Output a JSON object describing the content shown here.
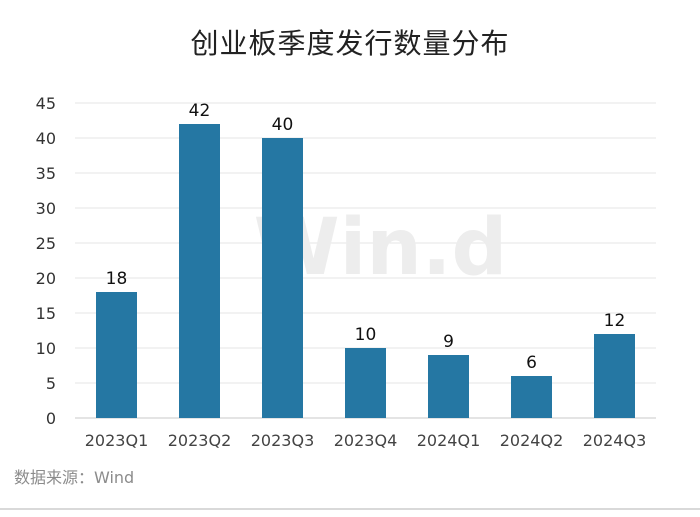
{
  "chart_data": {
    "type": "bar",
    "title": "创业板季度发行数量分布",
    "categories": [
      "2023Q1",
      "2023Q2",
      "2023Q3",
      "2023Q4",
      "2024Q1",
      "2024Q2",
      "2024Q3"
    ],
    "values": [
      18,
      42,
      40,
      10,
      9,
      6,
      12
    ],
    "ylim": [
      0,
      45
    ],
    "yticks": [
      0,
      5,
      10,
      15,
      20,
      25,
      30,
      35,
      40,
      45
    ],
    "grid": true,
    "bar_color": "#2577a3",
    "watermark": "Win.d"
  },
  "source": "数据来源：Wind"
}
